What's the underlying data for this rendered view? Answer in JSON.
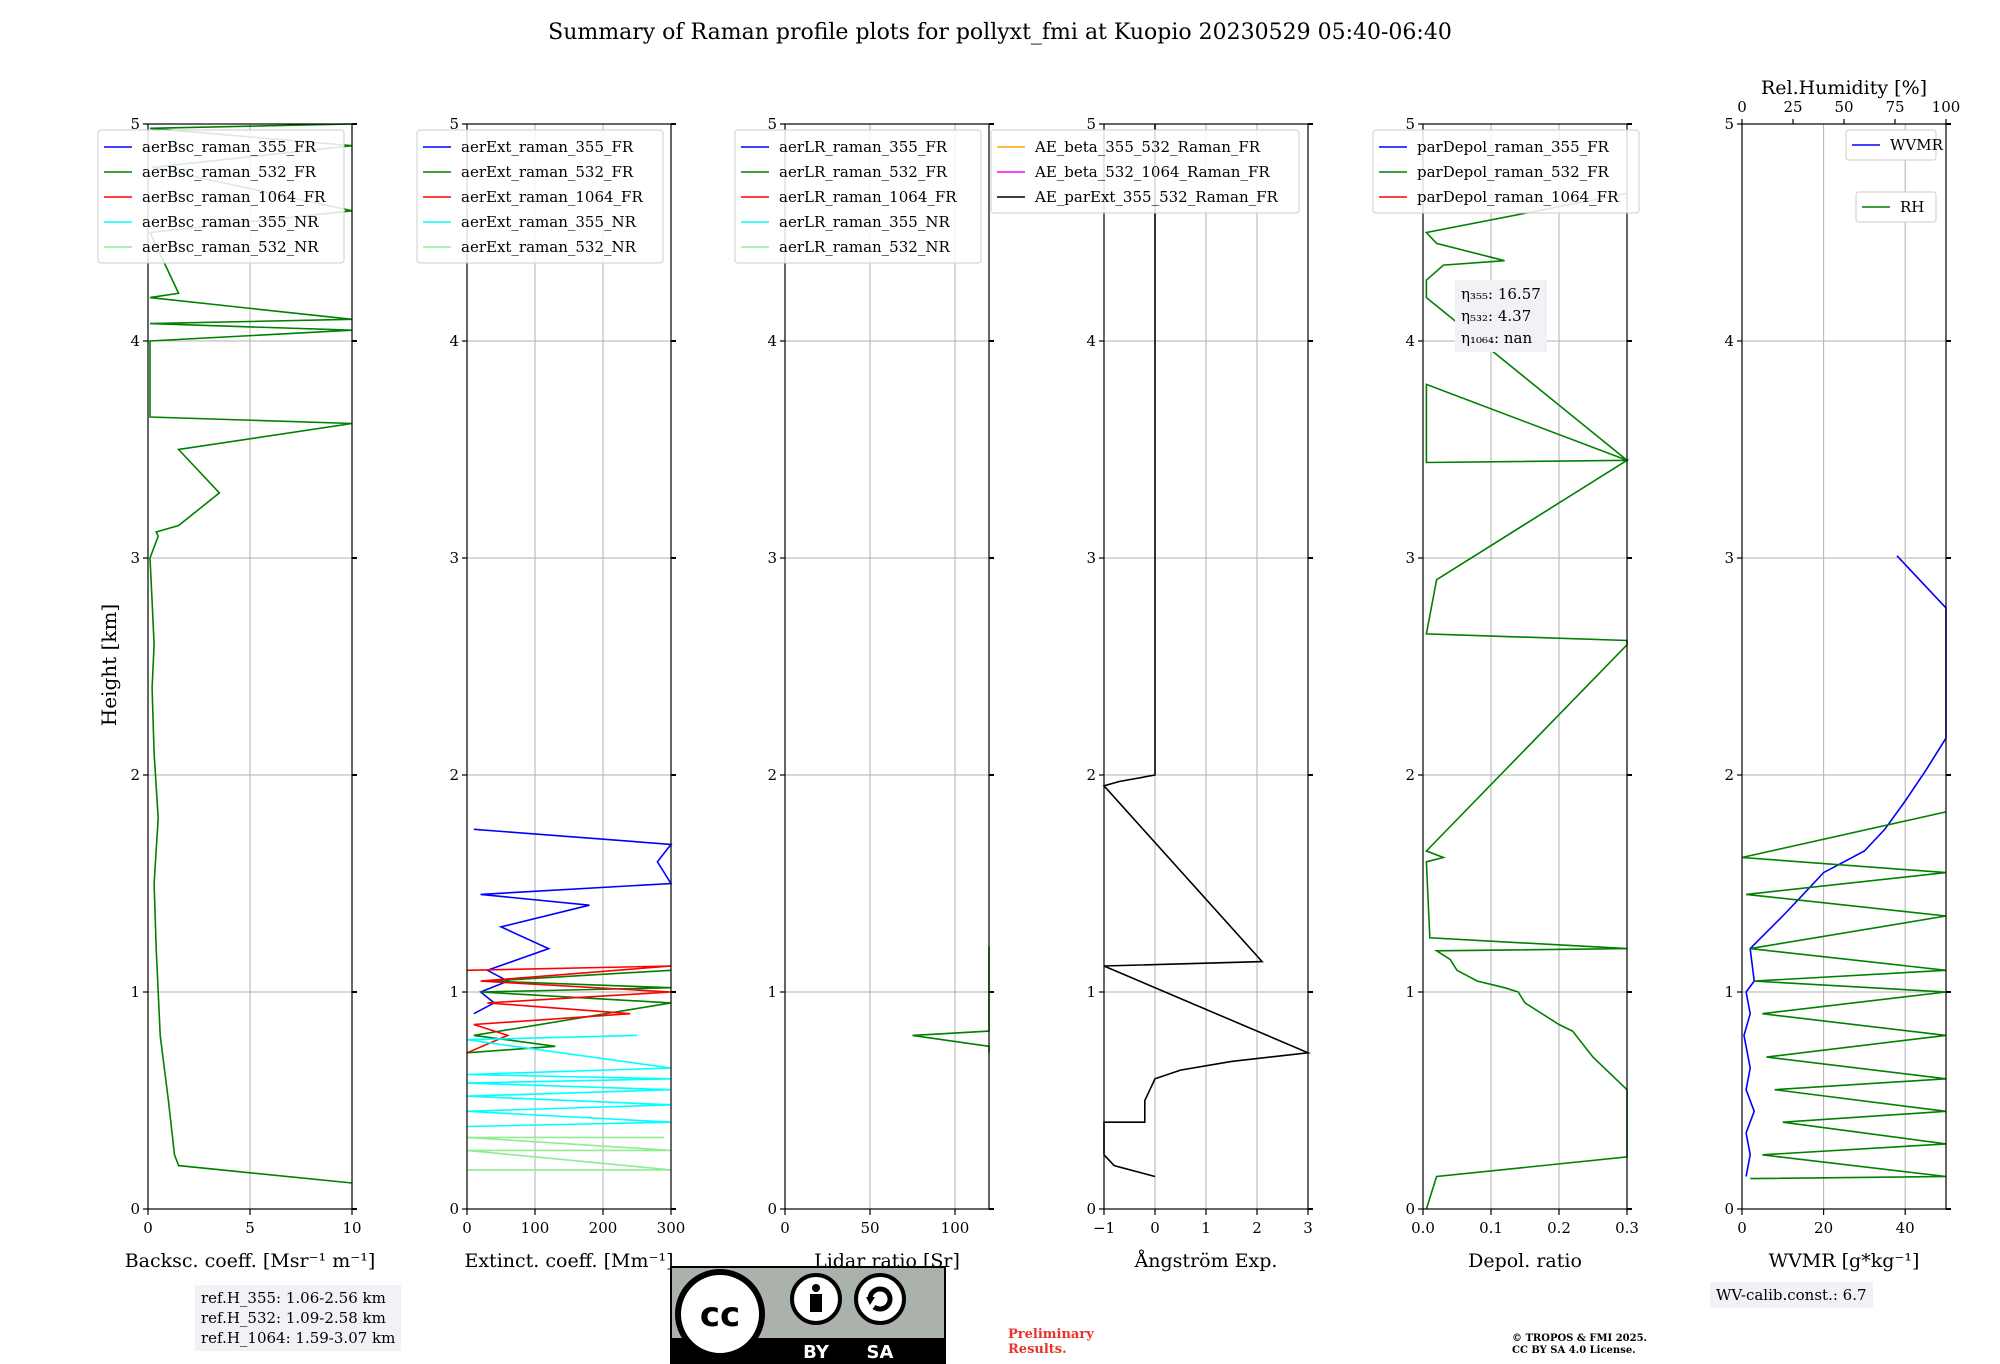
{
  "title": "Summary of Raman profile plots for pollyxt_fmi at Kuopio 20230529 05:40-06:40",
  "ylabel": "Height [km]",
  "yticks": [
    "0",
    "1",
    "2",
    "3",
    "4",
    "5"
  ],
  "annotations": {
    "ref": [
      "ref.H_355: 1.06-2.56 km",
      "ref.H_532: 1.09-2.58 km",
      "ref.H_1064: 1.59-3.07 km"
    ],
    "eta": [
      "η₃₅₅: 16.57",
      "η₅₃₂: 4.37",
      "η₁₀₆₄: nan"
    ],
    "wv_calib": "WV-calib.const.: 6.7",
    "preliminary": [
      "Preliminary",
      "Results."
    ],
    "copyright": [
      "© TROPOS & FMI 2025.",
      "CC BY SA 4.0 License."
    ],
    "license_badge": [
      "BY",
      "SA"
    ]
  },
  "colors": {
    "blue": "#0000ff",
    "green": "#008000",
    "red": "#ff0000",
    "cyan": "#00ffff",
    "lightgreen": "#90ee90",
    "orange": "#ffa500",
    "magenta": "#ff00ff",
    "black": "#000000"
  },
  "chart_data": [
    {
      "type": "line",
      "xlabel": "Backsc. coeff. [Msr⁻¹ m⁻¹]",
      "ylabel": "Height [km]",
      "xlim": [
        0,
        10
      ],
      "ylim": [
        0,
        5
      ],
      "xticks": [
        "0",
        "5",
        "10"
      ],
      "grid": true,
      "legend": "top-left",
      "legend_entries": [
        "aerBsc_raman_355_FR",
        "aerBsc_raman_532_FR",
        "aerBsc_raman_1064_FR",
        "aerBsc_raman_355_NR",
        "aerBsc_raman_532_NR"
      ],
      "series": [
        {
          "name": "aerBsc_raman_532_FR",
          "color": "green",
          "x": [
            10,
            1.5,
            1.3,
            1.0,
            0.6,
            0.4,
            0.3,
            0.5,
            0.3,
            0.2,
            0.3,
            0.2,
            0.1,
            0.3,
            0.5,
            0.4,
            1.5,
            3.5,
            1.5,
            10,
            0.1,
            0.1,
            10,
            0.1,
            10,
            0.1,
            1.5,
            0.1,
            10,
            0.2,
            10,
            0.1,
            10
          ],
          "y": [
            0.12,
            0.2,
            0.25,
            0.5,
            0.8,
            1.2,
            1.5,
            1.8,
            2.1,
            2.4,
            2.6,
            2.8,
            3.0,
            3.05,
            3.1,
            3.12,
            3.15,
            3.3,
            3.5,
            3.62,
            3.65,
            4.0,
            4.05,
            4.08,
            4.1,
            4.2,
            4.22,
            4.5,
            4.6,
            4.8,
            4.9,
            4.98,
            5.0
          ]
        }
      ]
    },
    {
      "type": "line",
      "xlabel": "Extinct. coeff. [Mm⁻¹]",
      "ylabel": "",
      "xlim": [
        0,
        300
      ],
      "ylim": [
        0,
        5
      ],
      "xticks": [
        "0",
        "100",
        "200",
        "300"
      ],
      "grid": true,
      "legend": "top-left",
      "legend_entries": [
        "aerExt_raman_355_FR",
        "aerExt_raman_532_FR",
        "aerExt_raman_1064_FR",
        "aerExt_raman_355_NR",
        "aerExt_raman_532_NR"
      ],
      "series": [
        {
          "name": "aerExt_raman_355_FR",
          "color": "blue",
          "x": [
            10,
            40,
            20,
            60,
            30,
            120,
            50,
            180,
            20,
            300,
            280,
            300,
            10
          ],
          "y": [
            0.9,
            0.95,
            1.0,
            1.05,
            1.1,
            1.2,
            1.3,
            1.4,
            1.45,
            1.5,
            1.6,
            1.68,
            1.75
          ]
        },
        {
          "name": "aerExt_raman_532_FR",
          "color": "green",
          "x": [
            0,
            130,
            10,
            300,
            20,
            300,
            30,
            300
          ],
          "y": [
            0.72,
            0.75,
            0.8,
            0.95,
            1.0,
            1.02,
            1.05,
            1.1
          ]
        },
        {
          "name": "aerExt_raman_1064_FR",
          "color": "red",
          "x": [
            0,
            60,
            10,
            240,
            30,
            300,
            20,
            300,
            0
          ],
          "y": [
            0.72,
            0.8,
            0.85,
            0.9,
            0.95,
            1.0,
            1.05,
            1.12,
            1.1
          ]
        },
        {
          "name": "aerExt_raman_355_NR",
          "color": "cyan",
          "x": [
            0,
            300,
            0,
            300,
            0,
            300,
            0,
            300,
            0,
            300,
            0,
            250
          ],
          "y": [
            0.38,
            0.4,
            0.45,
            0.48,
            0.52,
            0.55,
            0.58,
            0.6,
            0.62,
            0.65,
            0.78,
            0.8
          ]
        },
        {
          "name": "aerExt_raman_532_NR",
          "color": "lightgreen",
          "x": [
            0,
            300,
            0,
            300,
            0,
            290
          ],
          "y": [
            0.18,
            0.18,
            0.27,
            0.27,
            0.33,
            0.33
          ]
        }
      ]
    },
    {
      "type": "line",
      "xlabel": "Lidar ratio [Sr]",
      "ylabel": "",
      "xlim": [
        0,
        120
      ],
      "ylim": [
        0,
        5
      ],
      "xticks": [
        "0",
        "50",
        "100"
      ],
      "grid": true,
      "legend": "top-left",
      "legend_entries": [
        "aerLR_raman_355_FR",
        "aerLR_raman_532_FR",
        "aerLR_raman_1064_FR",
        "aerLR_raman_355_NR",
        "aerLR_raman_532_NR"
      ],
      "series": [
        {
          "name": "aerLR_raman_532_FR",
          "color": "green",
          "y": [
            0.72,
            0.75,
            0.8,
            0.82,
            0.97,
            0.99,
            1.12,
            1.14,
            1.21
          ],
          "x": [
            120,
            120,
            75,
            120,
            120,
            120,
            120,
            120,
            120
          ]
        }
      ]
    },
    {
      "type": "line",
      "xlabel": "Ångström Exp.",
      "ylabel": "",
      "xlim": [
        -1,
        3
      ],
      "ylim": [
        0,
        5
      ],
      "xticks": [
        "−1",
        "0",
        "1",
        "2",
        "3"
      ],
      "grid": true,
      "legend": "top-left",
      "legend_entries": [
        "AE_beta_355_532_Raman_FR",
        "AE_beta_532_1064_Raman_FR",
        "AE_parExt_355_532_Raman_FR"
      ],
      "series": [
        {
          "name": "AE_parExt_355_532_Raman_FR",
          "color": "black",
          "x": [
            0,
            -0.8,
            -1,
            -1,
            -0.2,
            -0.2,
            -0.1,
            0,
            0.5,
            1.5,
            3,
            -1,
            2.1,
            -1,
            -0.7,
            0,
            0,
            0
          ],
          "y": [
            0.15,
            0.2,
            0.25,
            0.4,
            0.4,
            0.5,
            0.55,
            0.6,
            0.64,
            0.68,
            0.72,
            1.12,
            1.14,
            1.95,
            1.97,
            2.0,
            2.01,
            5.0
          ]
        }
      ]
    },
    {
      "type": "line",
      "xlabel": "Depol. ratio",
      "ylabel": "",
      "xlim": [
        0,
        0.3
      ],
      "ylim": [
        0,
        5
      ],
      "xticks": [
        "0.0",
        "0.1",
        "0.2",
        "0.3"
      ],
      "grid": true,
      "legend": "top-left",
      "legend_entries": [
        "parDepol_raman_355_FR",
        "parDepol_raman_532_FR",
        "parDepol_raman_1064_FR"
      ],
      "series": [
        {
          "name": "parDepol_raman_532_FR",
          "color": "green",
          "x": [
            0.005,
            0.02,
            0.3,
            0.3,
            0.25,
            0.22,
            0.2,
            0.15,
            0.14,
            0.12,
            0.08,
            0.05,
            0.04,
            0.02,
            0.3,
            0.01,
            0.005,
            0.03,
            0.005,
            0.3,
            0.3,
            0.005,
            0.02,
            0.03,
            0.3,
            0.005,
            0.005,
            0.3,
            0.005,
            0.005,
            0.03,
            0.12,
            0.02,
            0.005,
            0.3
          ],
          "y": [
            0,
            0.15,
            0.24,
            0.55,
            0.7,
            0.82,
            0.85,
            0.95,
            1.0,
            1.02,
            1.05,
            1.1,
            1.15,
            1.19,
            1.2,
            1.25,
            1.6,
            1.62,
            1.65,
            2.6,
            2.62,
            2.65,
            2.9,
            2.92,
            3.45,
            3.44,
            3.8,
            3.45,
            4.2,
            4.28,
            4.35,
            4.37,
            4.45,
            4.5,
            4.68
          ]
        }
      ]
    },
    {
      "type": "line",
      "xlabel": "WVMR [g*kg⁻¹]",
      "ylabel": "",
      "xlim": [
        0,
        50
      ],
      "ylim": [
        0,
        5
      ],
      "xticks": [
        "0",
        "20",
        "40"
      ],
      "grid": true,
      "legend": "top-right",
      "top_axis": {
        "label": "Rel.Humidity [%]",
        "ticks": [
          "0",
          "25",
          "50",
          "75",
          "100"
        ],
        "lim": [
          0,
          100
        ]
      },
      "legend_entries": [
        "WVMR",
        "RH"
      ],
      "series": [
        {
          "name": "WVMR",
          "color": "blue",
          "x": [
            1,
            2,
            1,
            3,
            1,
            2,
            0.5,
            2,
            1,
            3,
            2,
            10,
            15,
            20,
            25,
            30,
            35,
            40,
            45,
            50,
            50,
            50,
            38
          ],
          "y": [
            0.15,
            0.25,
            0.35,
            0.45,
            0.55,
            0.65,
            0.8,
            0.9,
            1.0,
            1.05,
            1.2,
            1.35,
            1.45,
            1.55,
            1.6,
            1.65,
            1.75,
            1.88,
            2.02,
            2.17,
            2.63,
            2.77,
            3.01
          ]
        },
        {
          "name": "RH",
          "color": "green",
          "x": [
            2,
            100,
            5,
            90,
            10,
            95,
            8,
            100,
            6,
            100,
            5,
            100,
            3,
            100,
            2,
            100,
            1,
            100,
            0,
            100
          ],
          "y": [
            0.14,
            0.15,
            0.25,
            0.3,
            0.4,
            0.45,
            0.55,
            0.6,
            0.7,
            0.8,
            0.9,
            1.0,
            1.05,
            1.1,
            1.2,
            1.35,
            1.45,
            1.55,
            1.62,
            1.83
          ]
        }
      ]
    }
  ]
}
